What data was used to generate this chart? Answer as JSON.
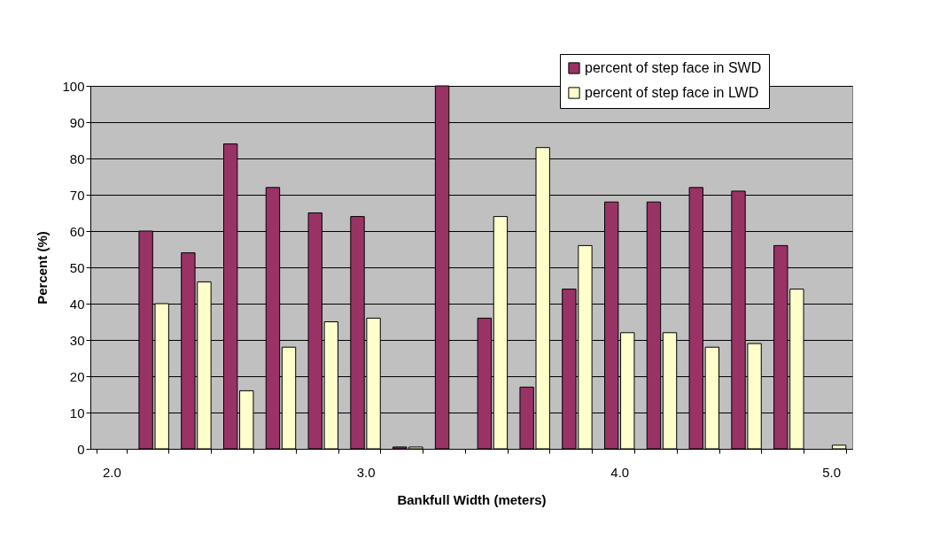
{
  "chart_data": {
    "type": "bar",
    "xlabel": "Bankfull Width (meters)",
    "ylabel": "Percent (%)",
    "categories": [
      "2.0",
      null,
      null,
      null,
      null,
      null,
      "3.0",
      null,
      null,
      null,
      null,
      null,
      "4.0",
      null,
      null,
      null,
      null,
      "5.0"
    ],
    "series": [
      {
        "name": "percent of step face in SWD",
        "color": "#993366",
        "values": [
          null,
          60,
          54,
          84,
          72,
          65,
          64,
          0.5,
          100,
          36,
          17,
          44,
          68,
          68,
          72,
          71,
          56,
          null
        ]
      },
      {
        "name": "percent of step face in LWD",
        "color": "#ffffcc",
        "values": [
          null,
          40,
          46,
          16,
          28,
          35,
          36,
          0.5,
          null,
          64,
          83,
          56,
          32,
          32,
          28,
          29,
          44,
          1
        ]
      }
    ],
    "ylim": [
      0,
      100
    ],
    "yticks": [
      0,
      10,
      20,
      30,
      40,
      50,
      60,
      70,
      80,
      90,
      100
    ],
    "grid": "y",
    "legend": "top right"
  }
}
